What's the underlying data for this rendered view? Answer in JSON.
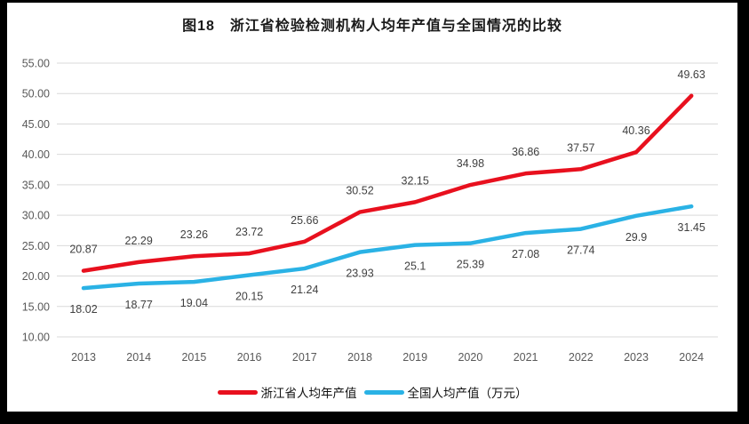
{
  "chart_data": {
    "type": "line",
    "title": "图18　浙江省检验检测机构人均年产值与全国情况的比较",
    "categories": [
      "2013",
      "2014",
      "2015",
      "2016",
      "2017",
      "2018",
      "2019",
      "2020",
      "2021",
      "2022",
      "2023",
      "2024"
    ],
    "series": [
      {
        "id": "zhejiang",
        "name": "浙江省人均年产值",
        "color": "#e8101e",
        "label_position": "above",
        "values": [
          20.87,
          22.29,
          23.26,
          23.72,
          25.66,
          30.52,
          32.15,
          34.98,
          36.86,
          37.57,
          40.36,
          49.63
        ],
        "labels": [
          "20.87",
          "22.29",
          "23.26",
          "23.72",
          "25.66",
          "30.52",
          "32.15",
          "34.98",
          "36.86",
          "37.57",
          "40.36",
          "49.63"
        ]
      },
      {
        "id": "national",
        "name": "全国人均产值（万元）",
        "color": "#2ab2e5",
        "label_position": "below",
        "values": [
          18.02,
          18.77,
          19.04,
          20.15,
          21.24,
          23.93,
          25.1,
          25.39,
          27.08,
          27.74,
          29.9,
          31.45
        ],
        "labels": [
          "18.02",
          "18.77",
          "19.04",
          "20.15",
          "21.24",
          "23.93",
          "25.1",
          "25.39",
          "27.08",
          "27.74",
          "29.9",
          "31.45"
        ]
      }
    ],
    "ytick_labels": [
      "55.00",
      "50.00",
      "45.00",
      "40.00",
      "35.00",
      "30.00",
      "25.00",
      "20.00",
      "15.00",
      "10.00"
    ],
    "ylim": [
      10,
      55
    ],
    "grid": true,
    "grid_color": "#d9d9d9",
    "legend_position": "bottom"
  }
}
